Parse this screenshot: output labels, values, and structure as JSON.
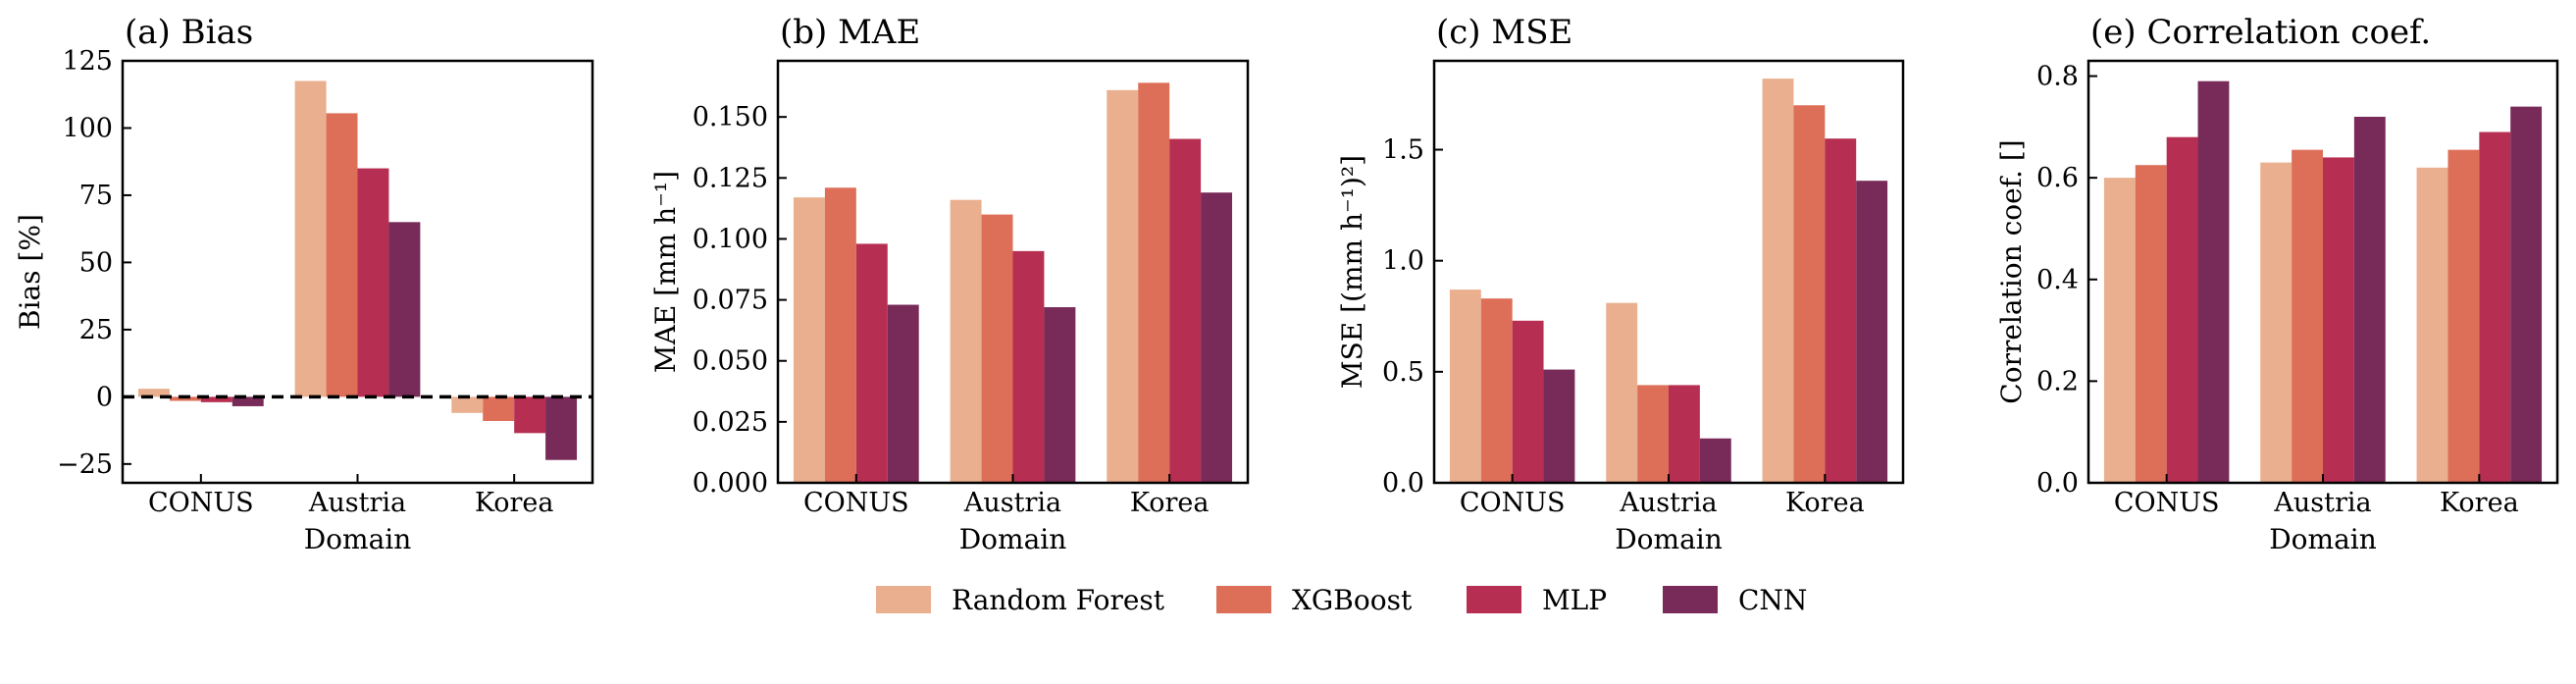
{
  "colors": {
    "Random Forest": "#E9AF8E",
    "XGBoost": "#DD6F58",
    "MLP": "#B62F52",
    "CNN": "#782A58"
  },
  "legend": [
    "Random Forest",
    "XGBoost",
    "MLP",
    "CNN"
  ],
  "chart_data": [
    {
      "type": "bar",
      "title": "(a) Bias",
      "xlabel": "Domain",
      "ylabel": "Bias [%]",
      "categories": [
        "CONUS",
        "Austria",
        "Korea"
      ],
      "ylim": [
        -32,
        125
      ],
      "yticks": [
        -25,
        0,
        25,
        50,
        75,
        100,
        125
      ],
      "ytick_labels": [
        "−25",
        "0",
        "25",
        "50",
        "75",
        "100",
        "125"
      ],
      "zero_line": true,
      "series": [
        {
          "name": "Random Forest",
          "values": [
            3,
            117.5,
            -6
          ]
        },
        {
          "name": "XGBoost",
          "values": [
            -1.5,
            105.5,
            -9
          ]
        },
        {
          "name": "MLP",
          "values": [
            -2,
            85,
            -13.5
          ]
        },
        {
          "name": "CNN",
          "values": [
            -3.5,
            65,
            -23.5
          ]
        }
      ]
    },
    {
      "type": "bar",
      "title": "(b) MAE",
      "xlabel": "Domain",
      "ylabel": "MAE [mm h⁻¹]",
      "categories": [
        "CONUS",
        "Austria",
        "Korea"
      ],
      "ylim": [
        0,
        0.173
      ],
      "yticks": [
        0,
        0.025,
        0.05,
        0.075,
        0.1,
        0.125,
        0.15
      ],
      "ytick_labels": [
        "0.000",
        "0.025",
        "0.050",
        "0.075",
        "0.100",
        "0.125",
        "0.150"
      ],
      "series": [
        {
          "name": "Random Forest",
          "values": [
            0.117,
            0.116,
            0.161
          ]
        },
        {
          "name": "XGBoost",
          "values": [
            0.121,
            0.11,
            0.164
          ]
        },
        {
          "name": "MLP",
          "values": [
            0.098,
            0.095,
            0.141
          ]
        },
        {
          "name": "CNN",
          "values": [
            0.073,
            0.072,
            0.119
          ]
        }
      ]
    },
    {
      "type": "bar",
      "title": "(c) MSE",
      "xlabel": "Domain",
      "ylabel": "MSE [(mm h⁻¹)²]",
      "categories": [
        "CONUS",
        "Austria",
        "Korea"
      ],
      "ylim": [
        0,
        1.9
      ],
      "yticks": [
        0,
        0.5,
        1.0,
        1.5
      ],
      "ytick_labels": [
        "0.0",
        "0.5",
        "1.0",
        "1.5"
      ],
      "series": [
        {
          "name": "Random Forest",
          "values": [
            0.87,
            0.81,
            1.82
          ]
        },
        {
          "name": "XGBoost",
          "values": [
            0.83,
            0.44,
            1.7
          ]
        },
        {
          "name": "MLP",
          "values": [
            0.73,
            0.44,
            1.55
          ]
        },
        {
          "name": "CNN",
          "values": [
            0.51,
            0.2,
            1.36
          ]
        }
      ]
    },
    {
      "type": "bar",
      "title": "(e) Correlation coef.",
      "xlabel": "Domain",
      "ylabel": "Correlation coef. []",
      "categories": [
        "CONUS",
        "Austria",
        "Korea"
      ],
      "ylim": [
        0,
        0.83
      ],
      "yticks": [
        0,
        0.2,
        0.4,
        0.6,
        0.8
      ],
      "ytick_labels": [
        "0.0",
        "0.2",
        "0.4",
        "0.6",
        "0.8"
      ],
      "series": [
        {
          "name": "Random Forest",
          "values": [
            0.6,
            0.63,
            0.62
          ]
        },
        {
          "name": "XGBoost",
          "values": [
            0.625,
            0.655,
            0.655
          ]
        },
        {
          "name": "MLP",
          "values": [
            0.68,
            0.64,
            0.69
          ]
        },
        {
          "name": "CNN",
          "values": [
            0.79,
            0.72,
            0.74
          ]
        }
      ]
    }
  ]
}
